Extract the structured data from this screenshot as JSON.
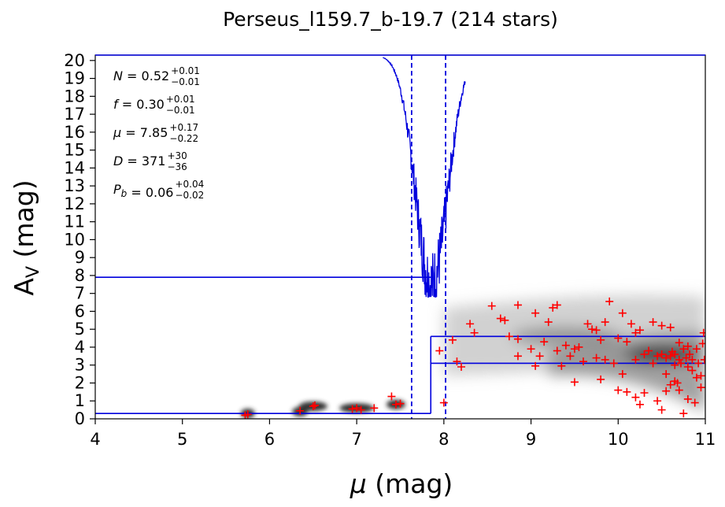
{
  "chart_data": {
    "type": "scatter",
    "title": "Perseus_l159.7_b-19.7 (214 stars)",
    "xlabel_symbol": "μ",
    "xlabel_unit": "(mag)",
    "ylabel_main": "A",
    "ylabel_sub": "V",
    "ylabel_unit": "(mag)",
    "xlim": [
      4,
      11
    ],
    "ylim": [
      0,
      20.3
    ],
    "xticks": [
      4,
      5,
      6,
      7,
      8,
      9,
      10,
      11
    ],
    "yticks": [
      0,
      1,
      2,
      3,
      4,
      5,
      6,
      7,
      8,
      9,
      10,
      11,
      12,
      13,
      14,
      15,
      16,
      17,
      18,
      19,
      20
    ],
    "grid": false,
    "annotations": [
      {
        "sym": "N",
        "val": "0.52",
        "sup": "+0.01",
        "sub": "−0.01"
      },
      {
        "sym": "f",
        "val": "0.30",
        "sup": "+0.01",
        "sub": "−0.01"
      },
      {
        "sym": "μ",
        "val": "7.85",
        "sup": "+0.17",
        "sub": "−0.22"
      },
      {
        "sym": "D",
        "val": "371",
        "sup": "+30",
        "sub": "−36"
      },
      {
        "sym": "P",
        "sym_sub": "b",
        "val": "0.06",
        "sup": "+0.04",
        "sub": "−0.02"
      }
    ],
    "model": {
      "mu": 7.85,
      "mu_lo": 7.63,
      "mu_hi": 8.02,
      "av_foreground": 0.3,
      "av_background_mean": 3.1,
      "av_background_upper": 4.6,
      "av_median_marker": 7.9
    },
    "stars_color": "#ff0000",
    "model_color": "#0000dd",
    "stars": [
      {
        "x": 5.72,
        "y": 0.2
      },
      {
        "x": 5.75,
        "y": 0.25
      },
      {
        "x": 6.35,
        "y": 0.45
      },
      {
        "x": 6.5,
        "y": 0.7
      },
      {
        "x": 6.52,
        "y": 0.75
      },
      {
        "x": 6.95,
        "y": 0.55
      },
      {
        "x": 7.0,
        "y": 0.6
      },
      {
        "x": 7.05,
        "y": 0.5
      },
      {
        "x": 7.2,
        "y": 0.6
      },
      {
        "x": 7.4,
        "y": 1.25
      },
      {
        "x": 7.45,
        "y": 0.8
      },
      {
        "x": 7.5,
        "y": 0.85
      },
      {
        "x": 7.95,
        "y": 3.8
      },
      {
        "x": 8.0,
        "y": 0.9
      },
      {
        "x": 8.1,
        "y": 4.4
      },
      {
        "x": 8.15,
        "y": 3.2
      },
      {
        "x": 8.2,
        "y": 2.9
      },
      {
        "x": 8.3,
        "y": 5.3
      },
      {
        "x": 8.35,
        "y": 4.8
      },
      {
        "x": 8.55,
        "y": 6.3
      },
      {
        "x": 8.65,
        "y": 5.6
      },
      {
        "x": 8.7,
        "y": 5.5
      },
      {
        "x": 8.75,
        "y": 4.6
      },
      {
        "x": 8.85,
        "y": 6.35
      },
      {
        "x": 8.85,
        "y": 4.45
      },
      {
        "x": 8.85,
        "y": 3.5
      },
      {
        "x": 9.0,
        "y": 3.9
      },
      {
        "x": 9.05,
        "y": 5.9
      },
      {
        "x": 9.05,
        "y": 2.95
      },
      {
        "x": 9.1,
        "y": 3.5
      },
      {
        "x": 9.15,
        "y": 4.3
      },
      {
        "x": 9.2,
        "y": 5.4
      },
      {
        "x": 9.25,
        "y": 6.2
      },
      {
        "x": 9.3,
        "y": 3.8
      },
      {
        "x": 9.3,
        "y": 6.35
      },
      {
        "x": 9.35,
        "y": 2.95
      },
      {
        "x": 9.4,
        "y": 4.1
      },
      {
        "x": 9.45,
        "y": 3.5
      },
      {
        "x": 9.5,
        "y": 2.05
      },
      {
        "x": 9.5,
        "y": 3.9
      },
      {
        "x": 9.55,
        "y": 4.0
      },
      {
        "x": 9.6,
        "y": 3.2
      },
      {
        "x": 9.65,
        "y": 5.3
      },
      {
        "x": 9.7,
        "y": 5.0
      },
      {
        "x": 9.75,
        "y": 3.4
      },
      {
        "x": 9.75,
        "y": 4.95
      },
      {
        "x": 9.8,
        "y": 4.4
      },
      {
        "x": 9.85,
        "y": 3.3
      },
      {
        "x": 9.85,
        "y": 5.4
      },
      {
        "x": 9.9,
        "y": 6.55
      },
      {
        "x": 9.95,
        "y": 3.1
      },
      {
        "x": 10.0,
        "y": 4.5
      },
      {
        "x": 10.05,
        "y": 5.9
      },
      {
        "x": 10.1,
        "y": 4.3
      },
      {
        "x": 10.15,
        "y": 5.3
      },
      {
        "x": 10.2,
        "y": 3.3
      },
      {
        "x": 10.2,
        "y": 4.8
      },
      {
        "x": 10.25,
        "y": 4.95
      },
      {
        "x": 10.3,
        "y": 3.6
      },
      {
        "x": 10.35,
        "y": 3.8
      },
      {
        "x": 10.4,
        "y": 3.1
      },
      {
        "x": 10.4,
        "y": 5.4
      },
      {
        "x": 10.45,
        "y": 3.5
      },
      {
        "x": 10.5,
        "y": 3.6
      },
      {
        "x": 10.5,
        "y": 5.2
      },
      {
        "x": 10.55,
        "y": 2.5
      },
      {
        "x": 10.55,
        "y": 3.4
      },
      {
        "x": 10.6,
        "y": 3.5
      },
      {
        "x": 10.6,
        "y": 5.1
      },
      {
        "x": 10.62,
        "y": 3.75
      },
      {
        "x": 10.65,
        "y": 3.0
      },
      {
        "x": 10.65,
        "y": 3.6
      },
      {
        "x": 10.68,
        "y": 2.0
      },
      {
        "x": 10.7,
        "y": 3.3
      },
      {
        "x": 10.7,
        "y": 4.25
      },
      {
        "x": 10.72,
        "y": 3.1
      },
      {
        "x": 10.75,
        "y": 3.9
      },
      {
        "x": 10.75,
        "y": 0.3
      },
      {
        "x": 10.78,
        "y": 3.4
      },
      {
        "x": 10.8,
        "y": 2.9
      },
      {
        "x": 10.8,
        "y": 4.05
      },
      {
        "x": 10.82,
        "y": 3.6
      },
      {
        "x": 10.85,
        "y": 3.3
      },
      {
        "x": 10.88,
        "y": 0.9
      },
      {
        "x": 10.9,
        "y": 3.9
      },
      {
        "x": 10.92,
        "y": 3.1
      },
      {
        "x": 10.95,
        "y": 2.4
      },
      {
        "x": 10.97,
        "y": 4.2
      },
      {
        "x": 10.98,
        "y": 4.8
      },
      {
        "x": 10.99,
        "y": 3.3
      },
      {
        "x": 10.1,
        "y": 1.5
      },
      {
        "x": 10.2,
        "y": 1.2
      },
      {
        "x": 10.25,
        "y": 0.8
      },
      {
        "x": 10.3,
        "y": 1.45
      },
      {
        "x": 10.45,
        "y": 1.0
      },
      {
        "x": 10.5,
        "y": 0.5
      },
      {
        "x": 10.55,
        "y": 1.55
      },
      {
        "x": 10.6,
        "y": 1.9
      },
      {
        "x": 10.65,
        "y": 2.1
      },
      {
        "x": 10.7,
        "y": 1.6
      },
      {
        "x": 10.8,
        "y": 1.1
      },
      {
        "x": 10.85,
        "y": 2.7
      },
      {
        "x": 10.9,
        "y": 2.3
      },
      {
        "x": 10.95,
        "y": 1.75
      },
      {
        "x": 10.0,
        "y": 1.6
      },
      {
        "x": 9.8,
        "y": 2.2
      },
      {
        "x": 10.05,
        "y": 2.5
      }
    ]
  }
}
